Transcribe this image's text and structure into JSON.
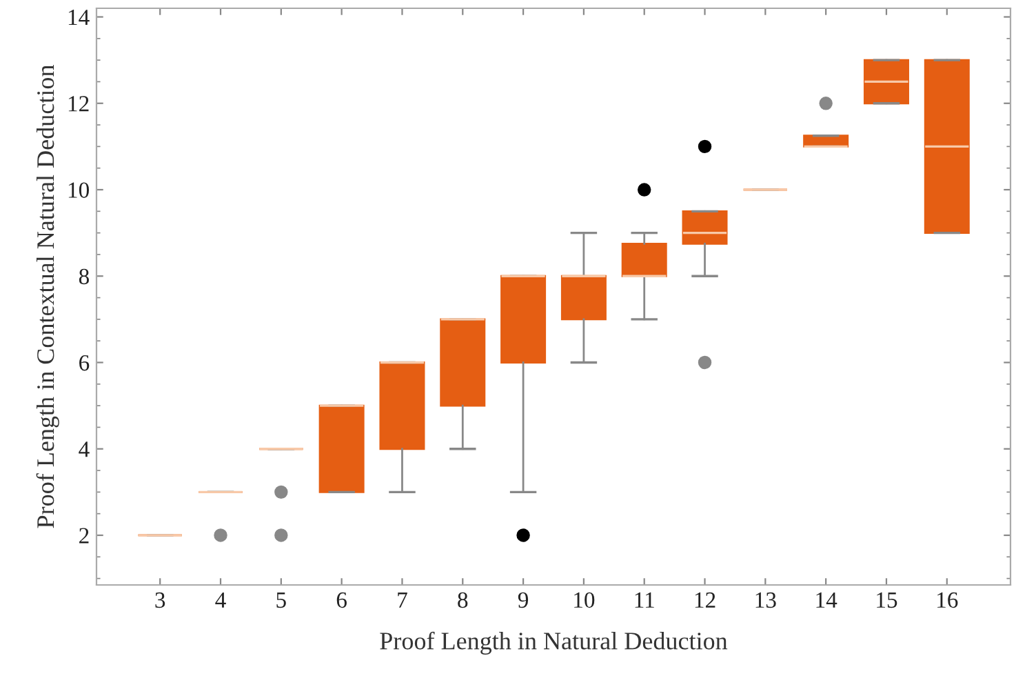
{
  "chart_data": {
    "type": "box",
    "xlabel": "Proof Length in Natural Deduction",
    "ylabel": "Proof Length in Contextual Natural Deduction",
    "categories": [
      "3",
      "4",
      "5",
      "6",
      "7",
      "8",
      "9",
      "10",
      "11",
      "12",
      "13",
      "14",
      "15",
      "16"
    ],
    "color": "#e55e13",
    "ylim": [
      0.85,
      14.2
    ],
    "yticks": [
      2,
      4,
      6,
      8,
      10,
      12,
      14
    ],
    "grid": false,
    "boxes": [
      {
        "low": 2,
        "q1": 2,
        "median": 2,
        "q3": 2,
        "high": 2
      },
      {
        "low": 3,
        "q1": 3,
        "median": 3,
        "q3": 3,
        "high": 3,
        "outliers": [
          2
        ]
      },
      {
        "low": 4,
        "q1": 4,
        "median": 4,
        "q3": 4,
        "high": 4,
        "outliers": [
          3,
          2
        ]
      },
      {
        "low": 3,
        "q1": 3,
        "median": 5,
        "q3": 5,
        "high": 5
      },
      {
        "low": 3,
        "q1": 4,
        "median": 6,
        "q3": 6,
        "high": 6
      },
      {
        "low": 4,
        "q1": 5,
        "median": 7,
        "q3": 7,
        "high": 7
      },
      {
        "low": 3,
        "q1": 6,
        "median": 8,
        "q3": 8,
        "high": 8
      },
      {
        "low": 6,
        "q1": 7,
        "median": 8,
        "q3": 8,
        "high": 9
      },
      {
        "low": 7,
        "q1": 8,
        "median": 8,
        "q3": 8.75,
        "high": 9
      },
      {
        "low": 8,
        "q1": 8.75,
        "median": 9,
        "q3": 9.5,
        "high": 9.5,
        "outliers": [
          6
        ]
      },
      {
        "low": 10,
        "q1": 10,
        "median": 10,
        "q3": 10,
        "high": 10
      },
      {
        "low": 11,
        "q1": 11,
        "median": 11,
        "q3": 11.25,
        "high": 11.25,
        "outliers": [
          12
        ]
      },
      {
        "low": 12,
        "q1": 12,
        "median": 12.5,
        "q3": 13,
        "high": 13
      },
      {
        "low": 9,
        "q1": 9,
        "median": 11,
        "q3": 13,
        "high": 13
      }
    ],
    "series": [
      {
        "type": "scatter",
        "x": [
          "9",
          "11",
          "12"
        ],
        "values": [
          2,
          10,
          11
        ],
        "color": "#000000"
      }
    ]
  }
}
